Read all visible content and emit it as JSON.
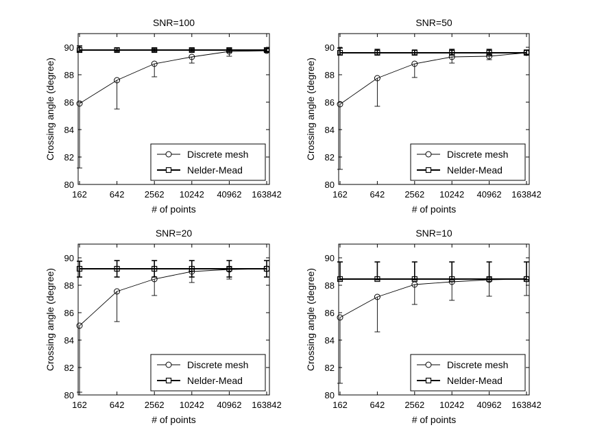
{
  "chart_data": [
    {
      "type": "line",
      "title": "SNR=100",
      "xlabel": "# of points",
      "ylabel": "Crossing angle (degree)",
      "categories": [
        "162",
        "642",
        "2562",
        "10242",
        "40962",
        "163842"
      ],
      "ylim": [
        80,
        91
      ],
      "yticks": [
        "80",
        "82",
        "84",
        "86",
        "88",
        "90"
      ],
      "legend_position": "bottom-right",
      "series": [
        {
          "name": "Discrete mesh",
          "marker": "circle",
          "line_width": "thin",
          "values": [
            85.9,
            87.6,
            88.8,
            89.3,
            89.7,
            89.75
          ],
          "err_low": [
            4.7,
            2.1,
            0.95,
            0.45,
            0.35,
            0.1
          ],
          "err_high": [
            0,
            0,
            0,
            0,
            0,
            0
          ]
        },
        {
          "name": "Nelder-Mead",
          "marker": "square",
          "line_width": "thick",
          "values": [
            89.8,
            89.8,
            89.8,
            89.8,
            89.8,
            89.8
          ],
          "err_low": [
            0.1,
            0.1,
            0.1,
            0.1,
            0.1,
            0.1
          ],
          "err_high": [
            0.3,
            0.15,
            0.1,
            0.1,
            0.1,
            0.1
          ]
        }
      ]
    },
    {
      "type": "line",
      "title": "SNR=50",
      "xlabel": "# of points",
      "ylabel": "Crossing angle (degree)",
      "categories": [
        "162",
        "642",
        "2562",
        "10242",
        "40962",
        "163842"
      ],
      "ylim": [
        80,
        91
      ],
      "yticks": [
        "80",
        "82",
        "84",
        "86",
        "88",
        "90"
      ],
      "legend_position": "bottom-right",
      "series": [
        {
          "name": "Discrete mesh",
          "marker": "circle",
          "line_width": "thin",
          "values": [
            85.85,
            87.75,
            88.8,
            89.3,
            89.35,
            89.6
          ],
          "err_low": [
            4.75,
            2.05,
            1.0,
            0.45,
            0.25,
            0.1
          ],
          "err_high": [
            0,
            0,
            0,
            0,
            0,
            0
          ]
        },
        {
          "name": "Nelder-Mead",
          "marker": "square",
          "line_width": "thick",
          "values": [
            89.6,
            89.6,
            89.6,
            89.6,
            89.6,
            89.6
          ],
          "err_low": [
            0.15,
            0.15,
            0.15,
            0.15,
            0.15,
            0.15
          ],
          "err_high": [
            0.35,
            0.25,
            0.2,
            0.25,
            0.25,
            0.2
          ]
        }
      ]
    },
    {
      "type": "line",
      "title": "SNR=20",
      "xlabel": "# of points",
      "ylabel": "Crossing angle (degree)",
      "categories": [
        "162",
        "642",
        "2562",
        "10242",
        "40962",
        "163842"
      ],
      "ylim": [
        80,
        91
      ],
      "yticks": [
        "80",
        "82",
        "84",
        "86",
        "88",
        "90"
      ],
      "legend_position": "bottom-right",
      "series": [
        {
          "name": "Discrete mesh",
          "marker": "circle",
          "line_width": "thin",
          "values": [
            85.05,
            87.55,
            88.45,
            89.0,
            89.15,
            89.2
          ],
          "err_low": [
            4.85,
            2.2,
            1.2,
            0.8,
            0.7,
            0.6
          ],
          "err_high": [
            0,
            0,
            0,
            0,
            0,
            0
          ]
        },
        {
          "name": "Nelder-Mead",
          "marker": "square",
          "line_width": "thick",
          "values": [
            89.2,
            89.2,
            89.2,
            89.2,
            89.2,
            89.2
          ],
          "err_low": [
            0.6,
            0.6,
            0.6,
            0.6,
            0.6,
            0.6
          ],
          "err_high": [
            0.55,
            0.6,
            0.6,
            0.6,
            0.6,
            0.6
          ]
        }
      ]
    },
    {
      "type": "line",
      "title": "SNR=10",
      "xlabel": "# of points",
      "ylabel": "Crossing angle (degree)",
      "categories": [
        "162",
        "642",
        "2562",
        "10242",
        "40962",
        "163842"
      ],
      "ylim": [
        80,
        91
      ],
      "yticks": [
        "80",
        "82",
        "84",
        "86",
        "88",
        "90"
      ],
      "legend_position": "bottom-right",
      "series": [
        {
          "name": "Discrete mesh",
          "marker": "circle",
          "line_width": "thin",
          "values": [
            85.65,
            87.15,
            88.05,
            88.25,
            88.4,
            88.45
          ],
          "err_low": [
            4.8,
            2.55,
            1.45,
            1.35,
            1.2,
            1.2
          ],
          "err_high": [
            0,
            0,
            0,
            0,
            0,
            0
          ]
        },
        {
          "name": "Nelder-Mead",
          "marker": "square",
          "line_width": "thick",
          "values": [
            88.45,
            88.45,
            88.45,
            88.45,
            88.45,
            88.45
          ],
          "err_low": [
            0.05,
            0.05,
            0.05,
            0.05,
            0.05,
            0.05
          ],
          "err_high": [
            1.25,
            1.25,
            1.25,
            1.25,
            1.25,
            1.25
          ]
        }
      ]
    }
  ]
}
